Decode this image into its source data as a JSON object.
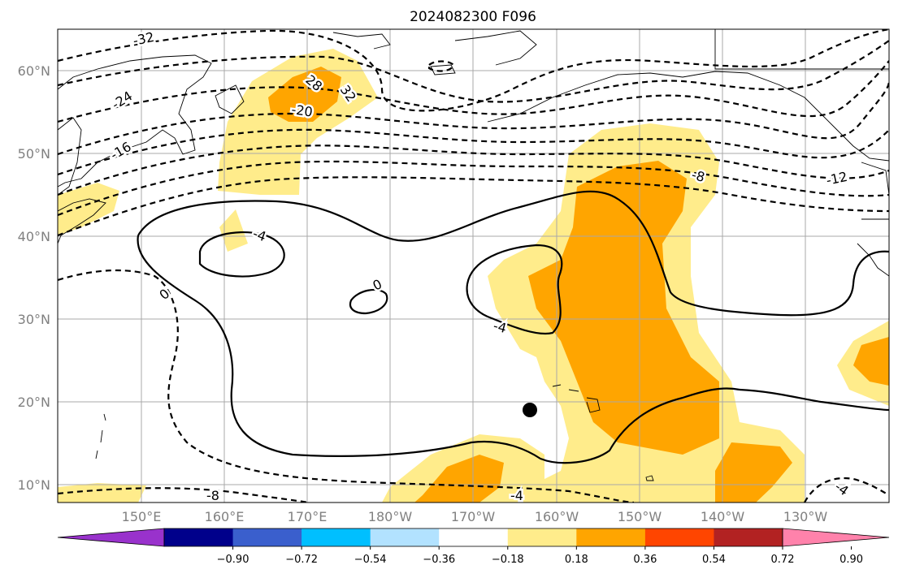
{
  "title": "2024082300 F096",
  "lat_ticks": [
    "60°N",
    "50°N",
    "40°N",
    "30°N",
    "20°N",
    "10°N"
  ],
  "lon_ticks": [
    "150°E",
    "160°E",
    "170°E",
    "180°W",
    "170°W",
    "160°W",
    "150°W",
    "140°W",
    "130°W"
  ],
  "colorbar": {
    "ticks": [
      "−0.90",
      "−0.72",
      "−0.54",
      "−0.36",
      "−0.18",
      "0.18",
      "0.36",
      "0.54",
      "0.72",
      "0.90"
    ],
    "colors": [
      "#9932cc",
      "#00008b",
      "#3a5fcd",
      "#00bfff",
      "#b2e2ff",
      "#ffffff",
      "#ffec8b",
      "#ffa500",
      "#ff4500",
      "#b22222",
      "#ff82ab"
    ]
  },
  "contour_labels": [
    "-32",
    "32",
    "28",
    "-24",
    "-20",
    "-16",
    "-12",
    "-8",
    "-4",
    "0",
    "-4",
    "0",
    "-4",
    "-8",
    "-4"
  ],
  "shading_colors": {
    "low": "#ffec8b",
    "mid": "#ffa500"
  },
  "marker": {
    "name": "storm position",
    "color": "#000000"
  }
}
